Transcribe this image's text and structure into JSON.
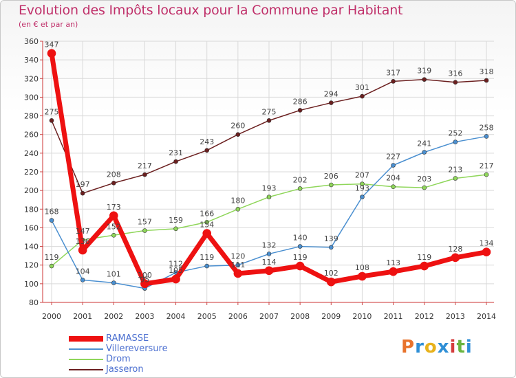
{
  "title": "Evolution des Impôts locaux pour la Commune par Habitant",
  "subtitle": "(en € et par an)",
  "logo": {
    "text": "Proxiti",
    "colors": [
      "#e8732c",
      "#2f8fd6",
      "#e8b21c",
      "#2f8fd6",
      "#d43d3d",
      "#6ab540",
      "#2f8fd6"
    ]
  },
  "chart_data": {
    "type": "line",
    "x": [
      "2000",
      "2001",
      "2002",
      "2003",
      "2004",
      "2005",
      "2006",
      "2007",
      "2008",
      "2009",
      "2010",
      "2011",
      "2012",
      "2013",
      "2014"
    ],
    "ylim": [
      80,
      360
    ],
    "yticks": [
      80,
      100,
      120,
      140,
      160,
      180,
      200,
      220,
      240,
      260,
      280,
      300,
      320,
      340,
      360
    ],
    "grid": true,
    "legend_position": "bottom-left",
    "series": [
      {
        "name": "Jasseron",
        "color": "#6b1f1f",
        "values": [
          275,
          197,
          208,
          217,
          231,
          243,
          260,
          275,
          286,
          294,
          301,
          317,
          319,
          316,
          318
        ]
      },
      {
        "name": "Drom",
        "color": "#8fd65a",
        "values": [
          119,
          147,
          152,
          157,
          159,
          166,
          180,
          193,
          202,
          206,
          207,
          204,
          203,
          213,
          217
        ]
      },
      {
        "name": "Villereversure",
        "color": "#4a8fd0",
        "values": [
          168,
          104,
          101,
          95,
          112,
          119,
          120,
          132,
          140,
          139,
          193,
          227,
          241,
          252,
          258
        ]
      },
      {
        "name": "RAMASSE",
        "color": "#ee1111",
        "values": [
          347,
          136,
          173,
          100,
          105,
          154,
          111,
          114,
          119,
          102,
          108,
          113,
          119,
          128,
          134
        ]
      }
    ],
    "labels": [
      {
        "series": "Jasseron",
        "values": [
          "275",
          "197",
          "208",
          "217",
          "231",
          "243",
          "260",
          "275",
          "286",
          "294",
          "301",
          "317",
          "319",
          "316",
          "318"
        ]
      },
      {
        "series": "Drom",
        "values": [
          "119",
          "147",
          "152",
          "157",
          "159",
          "166",
          "180",
          "193",
          "202",
          "206",
          "207",
          "204",
          "203",
          "213",
          "217"
        ]
      },
      {
        "series": "Villereversure",
        "values": [
          "168",
          "104",
          "101",
          "95",
          "112",
          "119",
          "120",
          "132",
          "140",
          "139",
          "193",
          "227",
          "241",
          "252",
          "258"
        ]
      },
      {
        "series": "RAMASSE",
        "values": [
          "347",
          "136",
          "173",
          "100",
          "105",
          "154",
          "111",
          "114",
          "119",
          "102",
          "108",
          "113",
          "119",
          "128",
          "134"
        ]
      }
    ],
    "legend": [
      "RAMASSE",
      "Villereversure",
      "Drom",
      "Jasseron"
    ]
  }
}
